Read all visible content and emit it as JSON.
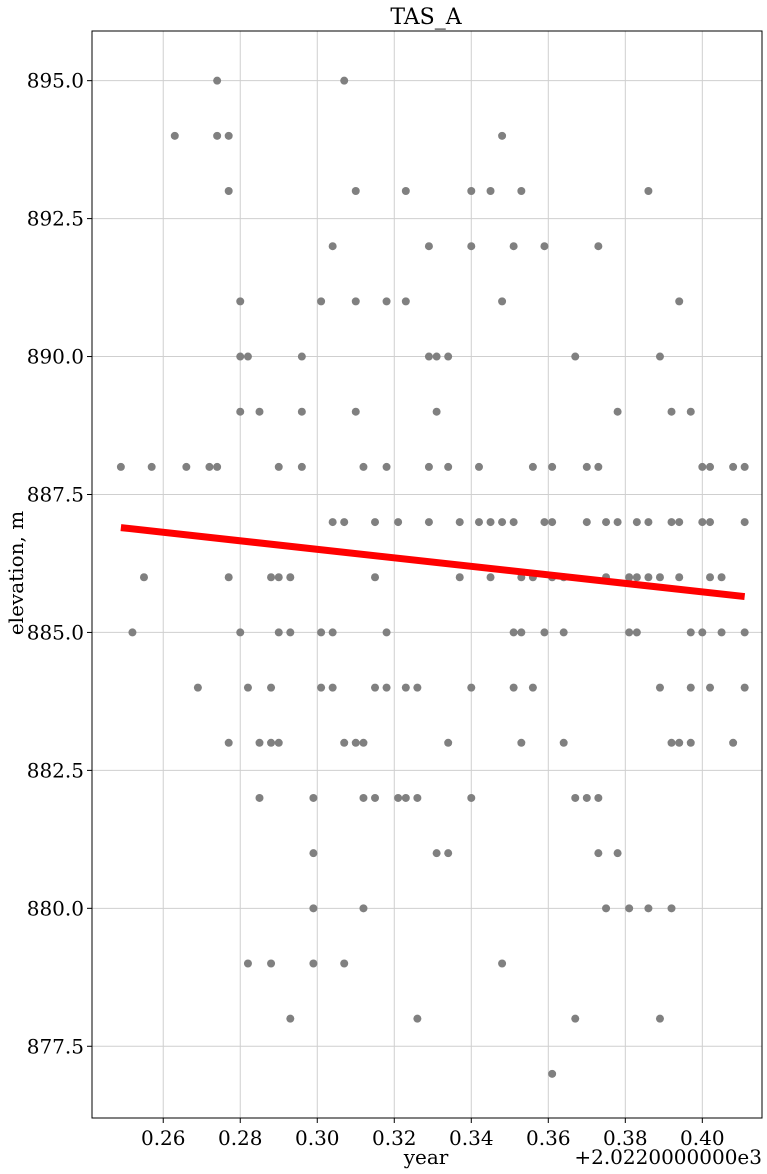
{
  "chart_data": {
    "type": "scatter",
    "title": "TAS_A",
    "xlabel": "year",
    "ylabel": "elevation, m",
    "x_offset_label": "+2.0220000000e3",
    "xlim": [
      0.2415,
      0.4155
    ],
    "ylim": [
      876.2,
      895.9
    ],
    "grid": true,
    "x_ticks": [
      0.26,
      0.28,
      0.3,
      0.32,
      0.34,
      0.36,
      0.38,
      0.4
    ],
    "x_tick_labels": [
      "0.26",
      "0.28",
      "0.30",
      "0.32",
      "0.34",
      "0.36",
      "0.38",
      "0.40"
    ],
    "y_ticks": [
      877.5,
      880.0,
      882.5,
      885.0,
      887.5,
      890.0,
      892.5,
      895.0
    ],
    "y_tick_labels": [
      "877.5",
      "880.0",
      "882.5",
      "885.0",
      "887.5",
      "890.0",
      "892.5",
      "895.0"
    ],
    "series": [
      {
        "type": "scatter",
        "color": "#808080",
        "points": [
          [
            0.249,
            888
          ],
          [
            0.252,
            885
          ],
          [
            0.255,
            886
          ],
          [
            0.257,
            888
          ],
          [
            0.263,
            894
          ],
          [
            0.266,
            888
          ],
          [
            0.269,
            884
          ],
          [
            0.272,
            888
          ],
          [
            0.274,
            895
          ],
          [
            0.274,
            894
          ],
          [
            0.274,
            888
          ],
          [
            0.277,
            894
          ],
          [
            0.277,
            893
          ],
          [
            0.277,
            886
          ],
          [
            0.277,
            883
          ],
          [
            0.28,
            891
          ],
          [
            0.28,
            890
          ],
          [
            0.28,
            889
          ],
          [
            0.28,
            885
          ],
          [
            0.282,
            890
          ],
          [
            0.282,
            884
          ],
          [
            0.282,
            879
          ],
          [
            0.285,
            889
          ],
          [
            0.285,
            883
          ],
          [
            0.285,
            882
          ],
          [
            0.288,
            886
          ],
          [
            0.288,
            884
          ],
          [
            0.288,
            883
          ],
          [
            0.288,
            879
          ],
          [
            0.29,
            888
          ],
          [
            0.29,
            886
          ],
          [
            0.29,
            885
          ],
          [
            0.29,
            883
          ],
          [
            0.293,
            886
          ],
          [
            0.293,
            885
          ],
          [
            0.293,
            878
          ],
          [
            0.296,
            890
          ],
          [
            0.296,
            889
          ],
          [
            0.296,
            888
          ],
          [
            0.299,
            882
          ],
          [
            0.299,
            881
          ],
          [
            0.299,
            880
          ],
          [
            0.299,
            879
          ],
          [
            0.301,
            891
          ],
          [
            0.301,
            885
          ],
          [
            0.301,
            884
          ],
          [
            0.304,
            892
          ],
          [
            0.304,
            887
          ],
          [
            0.304,
            885
          ],
          [
            0.304,
            884
          ],
          [
            0.307,
            895
          ],
          [
            0.307,
            887
          ],
          [
            0.307,
            883
          ],
          [
            0.307,
            879
          ],
          [
            0.31,
            893
          ],
          [
            0.31,
            891
          ],
          [
            0.31,
            889
          ],
          [
            0.31,
            883
          ],
          [
            0.312,
            888
          ],
          [
            0.312,
            883
          ],
          [
            0.312,
            882
          ],
          [
            0.312,
            880
          ],
          [
            0.315,
            887
          ],
          [
            0.315,
            886
          ],
          [
            0.315,
            884
          ],
          [
            0.315,
            882
          ],
          [
            0.318,
            891
          ],
          [
            0.318,
            888
          ],
          [
            0.318,
            885
          ],
          [
            0.318,
            884
          ],
          [
            0.321,
            887
          ],
          [
            0.321,
            882
          ],
          [
            0.323,
            893
          ],
          [
            0.323,
            891
          ],
          [
            0.323,
            884
          ],
          [
            0.323,
            882
          ],
          [
            0.326,
            884
          ],
          [
            0.326,
            882
          ],
          [
            0.326,
            878
          ],
          [
            0.329,
            892
          ],
          [
            0.329,
            890
          ],
          [
            0.329,
            888
          ],
          [
            0.329,
            887
          ],
          [
            0.331,
            890
          ],
          [
            0.331,
            889
          ],
          [
            0.331,
            881
          ],
          [
            0.334,
            890
          ],
          [
            0.334,
            888
          ],
          [
            0.334,
            883
          ],
          [
            0.334,
            881
          ],
          [
            0.337,
            887
          ],
          [
            0.337,
            886
          ],
          [
            0.34,
            893
          ],
          [
            0.34,
            892
          ],
          [
            0.34,
            884
          ],
          [
            0.34,
            882
          ],
          [
            0.342,
            888
          ],
          [
            0.342,
            887
          ],
          [
            0.345,
            893
          ],
          [
            0.345,
            887
          ],
          [
            0.345,
            886
          ],
          [
            0.348,
            894
          ],
          [
            0.348,
            891
          ],
          [
            0.348,
            887
          ],
          [
            0.348,
            879
          ],
          [
            0.351,
            892
          ],
          [
            0.351,
            887
          ],
          [
            0.351,
            885
          ],
          [
            0.351,
            884
          ],
          [
            0.353,
            893
          ],
          [
            0.353,
            886
          ],
          [
            0.353,
            885
          ],
          [
            0.353,
            883
          ],
          [
            0.356,
            888
          ],
          [
            0.356,
            886
          ],
          [
            0.356,
            884
          ],
          [
            0.359,
            892
          ],
          [
            0.359,
            887
          ],
          [
            0.359,
            885
          ],
          [
            0.361,
            888
          ],
          [
            0.361,
            887
          ],
          [
            0.361,
            886
          ],
          [
            0.361,
            877
          ],
          [
            0.364,
            886
          ],
          [
            0.364,
            885
          ],
          [
            0.364,
            883
          ],
          [
            0.367,
            890
          ],
          [
            0.367,
            882
          ],
          [
            0.367,
            878
          ],
          [
            0.37,
            888
          ],
          [
            0.37,
            887
          ],
          [
            0.37,
            882
          ],
          [
            0.373,
            892
          ],
          [
            0.373,
            888
          ],
          [
            0.373,
            882
          ],
          [
            0.373,
            881
          ],
          [
            0.375,
            887
          ],
          [
            0.375,
            886
          ],
          [
            0.375,
            880
          ],
          [
            0.378,
            889
          ],
          [
            0.378,
            887
          ],
          [
            0.378,
            881
          ],
          [
            0.381,
            886
          ],
          [
            0.381,
            885
          ],
          [
            0.381,
            880
          ],
          [
            0.383,
            887
          ],
          [
            0.383,
            886
          ],
          [
            0.383,
            885
          ],
          [
            0.386,
            893
          ],
          [
            0.386,
            887
          ],
          [
            0.386,
            886
          ],
          [
            0.386,
            880
          ],
          [
            0.389,
            890
          ],
          [
            0.389,
            886
          ],
          [
            0.389,
            884
          ],
          [
            0.389,
            878
          ],
          [
            0.392,
            889
          ],
          [
            0.392,
            887
          ],
          [
            0.392,
            883
          ],
          [
            0.392,
            880
          ],
          [
            0.394,
            891
          ],
          [
            0.394,
            887
          ],
          [
            0.394,
            886
          ],
          [
            0.394,
            883
          ],
          [
            0.397,
            889
          ],
          [
            0.397,
            885
          ],
          [
            0.397,
            884
          ],
          [
            0.397,
            883
          ],
          [
            0.4,
            888
          ],
          [
            0.4,
            887
          ],
          [
            0.4,
            885
          ],
          [
            0.402,
            888
          ],
          [
            0.402,
            887
          ],
          [
            0.402,
            886
          ],
          [
            0.402,
            884
          ],
          [
            0.405,
            886
          ],
          [
            0.405,
            885
          ],
          [
            0.408,
            888
          ],
          [
            0.408,
            883
          ],
          [
            0.411,
            888
          ],
          [
            0.411,
            887
          ],
          [
            0.411,
            885
          ],
          [
            0.411,
            884
          ]
        ]
      },
      {
        "type": "line",
        "color": "#ff0000",
        "points": [
          [
            0.249,
            886.9
          ],
          [
            0.411,
            885.65
          ]
        ]
      }
    ]
  }
}
